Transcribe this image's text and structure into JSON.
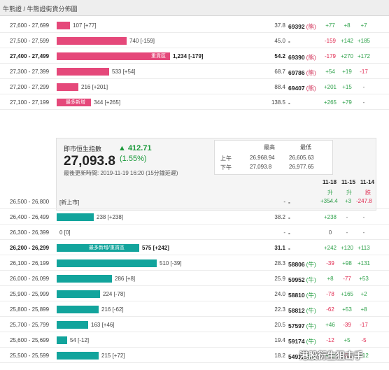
{
  "header": {
    "title": "牛熊證 / 牛熊證街貨分佈圖"
  },
  "rows_top": [
    {
      "range": "27,600 - 27,699",
      "qty": "107 [+77]",
      "ratio": "37.8",
      "code": "69392",
      "type": "(熊)",
      "c1": "+77",
      "c2": "+8",
      "c3": "+7",
      "bar": 0.12,
      "tag": ""
    },
    {
      "range": "27,500 - 27,599",
      "qty": "740 [-159]",
      "ratio": "45.0",
      "code": "-",
      "type": "",
      "c1": "-159",
      "c2": "+142",
      "c3": "+185",
      "bar": 0.62,
      "tag": ""
    },
    {
      "range": "27,400 - 27,499",
      "qty": "1,234 [-179]",
      "ratio": "54.2",
      "code": "69390",
      "type": "(熊)",
      "c1": "-179",
      "c2": "+270",
      "c3": "+172",
      "bar": 1.0,
      "tag": "重貨區",
      "bold": true
    },
    {
      "range": "27,300 - 27,399",
      "qty": "533 [+54]",
      "ratio": "68.7",
      "code": "69786",
      "type": "(熊)",
      "c1": "+54",
      "c2": "+19",
      "c3": "-17",
      "bar": 0.46,
      "tag": ""
    },
    {
      "range": "27,200 - 27,299",
      "qty": "216 [+201]",
      "ratio": "88.4",
      "code": "69407",
      "type": "(熊)",
      "c1": "+201",
      "c2": "+15",
      "c3": "-",
      "bar": 0.19,
      "tag": ""
    },
    {
      "range": "27,100 - 27,199",
      "qty": "344 [+265]",
      "ratio": "138.5",
      "code": "-",
      "type": "",
      "c1": "+265",
      "c2": "+79",
      "c3": "-",
      "bar": 0.3,
      "tag": "最多新增"
    }
  ],
  "panel": {
    "title": "即市恒生指數",
    "index": "27,093.8",
    "change": "▲ 412.71",
    "pct": "(1.55%)",
    "updated": "最後更新時間: 2019-11-19 16:20 (15分鐘延遲)",
    "col_high": "最高",
    "col_low": "最低",
    "am_label": "上午",
    "am_high": "26,968.94",
    "am_low": "26,605.63",
    "pm_label": "下午",
    "pm_high": "27,093.8",
    "pm_low": "26,977.65",
    "dates": [
      "11-18",
      "11-15",
      "11-14"
    ],
    "trend": [
      "升",
      "升",
      "跌"
    ],
    "net": [
      "+354.4",
      "+3",
      "-247.8"
    ]
  },
  "rows_bottom": [
    {
      "range": "26,500 - 26,800",
      "qty": "[新上市]",
      "ratio": "-",
      "code": "-",
      "type": "",
      "c1": "-",
      "c2": "",
      "c3": "",
      "bar": 0,
      "tag": ""
    },
    {
      "range": "26,400 - 26,499",
      "qty": "238 [+238]",
      "ratio": "38.2",
      "code": "-",
      "type": "",
      "c1": "+238",
      "c2": "-",
      "c3": "-",
      "bar": 0.33,
      "tag": ""
    },
    {
      "range": "26,300 - 26,399",
      "qty": "0 [0]",
      "ratio": "-",
      "code": "-",
      "type": "",
      "c1": "0",
      "c2": "-",
      "c3": "-",
      "bar": 0,
      "tag": ""
    },
    {
      "range": "26,200 - 26,299",
      "qty": "575 [+242]",
      "ratio": "31.1",
      "code": "-",
      "type": "",
      "c1": "+242",
      "c2": "+120",
      "c3": "+113",
      "bar": 0.73,
      "tag": "最多新增/重貨區",
      "bold": true
    },
    {
      "range": "26,100 - 26,199",
      "qty": "510 [-39]",
      "ratio": "28.3",
      "code": "58806",
      "type": "(牛)",
      "c1": "-39",
      "c2": "+98",
      "c3": "+131",
      "bar": 0.88,
      "tag": ""
    },
    {
      "range": "26,000 - 26,099",
      "qty": "286 [+8]",
      "ratio": "25.9",
      "code": "59952",
      "type": "(牛)",
      "c1": "+8",
      "c2": "-77",
      "c3": "+53",
      "bar": 0.49,
      "tag": ""
    },
    {
      "range": "25,900 - 25,999",
      "qty": "224 [-78]",
      "ratio": "24.0",
      "code": "58810",
      "type": "(牛)",
      "c1": "-78",
      "c2": "+165",
      "c3": "+2",
      "bar": 0.38,
      "tag": ""
    },
    {
      "range": "25,800 - 25,899",
      "qty": "216 [-62]",
      "ratio": "22.3",
      "code": "58812",
      "type": "(牛)",
      "c1": "-62",
      "c2": "+53",
      "c3": "+8",
      "bar": 0.37,
      "tag": ""
    },
    {
      "range": "25,700 - 25,799",
      "qty": "163 [+46]",
      "ratio": "20.5",
      "code": "57597",
      "type": "(牛)",
      "c1": "+46",
      "c2": "-39",
      "c3": "-17",
      "bar": 0.28,
      "tag": ""
    },
    {
      "range": "25,600 - 25,699",
      "qty": "54 [-12]",
      "ratio": "19.4",
      "code": "59174",
      "type": "(牛)",
      "c1": "-12",
      "c2": "+5",
      "c3": "-5",
      "bar": 0.09,
      "tag": ""
    },
    {
      "range": "25,500 - 25,599",
      "qty": "215 [+72]",
      "ratio": "18.2",
      "code": "54911",
      "type": "(牛)",
      "c1": "+72",
      "c2": "-31",
      "c3": "+12",
      "bar": 0.37,
      "tag": ""
    }
  ],
  "watermark": "港股衍生狙击手",
  "colors": {
    "bear": "#e5487a",
    "bull": "#12a49c",
    "up": "#2ea14a",
    "down": "#e0284f"
  }
}
